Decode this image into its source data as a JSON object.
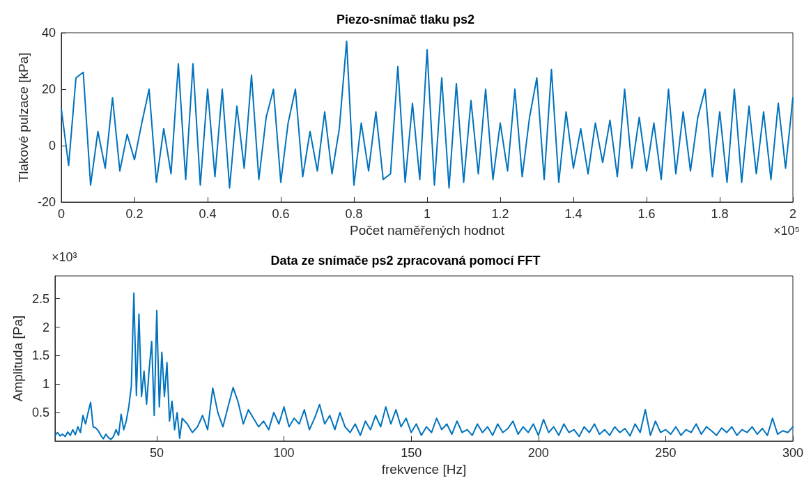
{
  "chart_data": [
    {
      "type": "line",
      "title": "Piezo-snímač tlaku ps2",
      "xlabel": "Počet naměřených hodnot",
      "ylabel": "Tlakové pulzace [kPa]",
      "annotations": [
        "×10⁵"
      ],
      "x": [
        0,
        0.02,
        0.04,
        0.06,
        0.08,
        0.1,
        0.12,
        0.14,
        0.16,
        0.18,
        0.2,
        0.22,
        0.24,
        0.26,
        0.28,
        0.3,
        0.32,
        0.34,
        0.36,
        0.38,
        0.4,
        0.42,
        0.44,
        0.46,
        0.48,
        0.5,
        0.52,
        0.54,
        0.56,
        0.58,
        0.6,
        0.62,
        0.64,
        0.66,
        0.68,
        0.7,
        0.72,
        0.74,
        0.76,
        0.78,
        0.8,
        0.82,
        0.84,
        0.86,
        0.88,
        0.9,
        0.92,
        0.94,
        0.96,
        0.98,
        1,
        1.02,
        1.04,
        1.06,
        1.08,
        1.1,
        1.12,
        1.14,
        1.16,
        1.18,
        1.2,
        1.22,
        1.24,
        1.26,
        1.28,
        1.3,
        1.32,
        1.34,
        1.36,
        1.38,
        1.4,
        1.42,
        1.44,
        1.46,
        1.48,
        1.5,
        1.52,
        1.54,
        1.56,
        1.58,
        1.6,
        1.62,
        1.64,
        1.66,
        1.68,
        1.7,
        1.72,
        1.74,
        1.76,
        1.78,
        1.8,
        1.82,
        1.84,
        1.86,
        1.88,
        1.9,
        1.92,
        1.94,
        1.96,
        1.98,
        2
      ],
      "series": [
        {
          "color": "#0072bd",
          "values": [
            13,
            -7,
            24,
            26,
            -14,
            5,
            -8,
            17,
            -9,
            4,
            -5,
            8,
            20,
            -13,
            6,
            -10,
            29,
            -12,
            29,
            -14,
            20,
            -11,
            20,
            -15,
            14,
            -8,
            25,
            -12,
            10,
            20,
            -13,
            8,
            20,
            -11,
            5,
            -9,
            12,
            -10,
            6,
            37,
            -14,
            8,
            -9,
            12,
            -12,
            -10,
            28,
            -13,
            15,
            -12,
            34,
            -14,
            24,
            -15,
            22,
            -13,
            16,
            -10,
            20,
            -12,
            8,
            -9,
            20,
            -11,
            10,
            24,
            -12,
            27,
            -13,
            12,
            -8,
            6,
            -10,
            8,
            -6,
            9,
            -11,
            20,
            -8,
            10,
            -9,
            8,
            -12,
            20,
            -10,
            12,
            -9,
            10,
            20,
            -11,
            12,
            -13,
            20,
            -13,
            14,
            -10,
            12,
            -12,
            15,
            -8,
            17
          ]
        }
      ],
      "xlim": [
        0,
        2
      ],
      "xticks": [
        0,
        0.2,
        0.4,
        0.6,
        0.8,
        1,
        1.2,
        1.4,
        1.6,
        1.8,
        2
      ],
      "ylim": [
        -20,
        40
      ],
      "yticks": [
        -20,
        0,
        20,
        40
      ],
      "marker": "none",
      "line_style": "solid"
    },
    {
      "type": "line",
      "title": "Data ze snímače ps2 zpracovaná pomocí FFT",
      "xlabel": "frekvence [Hz]",
      "ylabel": "Amplituda [Pa]",
      "annotations": [
        "×10³"
      ],
      "x": [
        10,
        11,
        12,
        13,
        14,
        15,
        16,
        17,
        18,
        19,
        20,
        21,
        22,
        23,
        24,
        25,
        26,
        27,
        28,
        29,
        30,
        31,
        32,
        33,
        34,
        35,
        36,
        37,
        38,
        39,
        40,
        41,
        42,
        43,
        44,
        45,
        46,
        47,
        48,
        49,
        50,
        51,
        52,
        53,
        54,
        55,
        56,
        57,
        58,
        59,
        60,
        62,
        64,
        66,
        68,
        70,
        72,
        74,
        76,
        78,
        80,
        82,
        84,
        86,
        88,
        90,
        92,
        94,
        96,
        98,
        100,
        102,
        104,
        106,
        108,
        110,
        112,
        114,
        116,
        118,
        120,
        122,
        124,
        126,
        128,
        130,
        132,
        134,
        136,
        138,
        140,
        142,
        144,
        146,
        148,
        150,
        152,
        154,
        156,
        158,
        160,
        162,
        164,
        166,
        168,
        170,
        172,
        174,
        176,
        178,
        180,
        182,
        184,
        186,
        188,
        190,
        192,
        194,
        196,
        198,
        200,
        202,
        204,
        206,
        208,
        210,
        212,
        214,
        216,
        218,
        220,
        222,
        224,
        226,
        228,
        230,
        232,
        234,
        236,
        238,
        240,
        242,
        244,
        246,
        248,
        250,
        252,
        254,
        256,
        258,
        260,
        262,
        264,
        266,
        268,
        270,
        272,
        274,
        276,
        278,
        280,
        282,
        284,
        286,
        288,
        290,
        292,
        294,
        296,
        298,
        300
      ],
      "series": [
        {
          "color": "#0072bd",
          "values": [
            0.1,
            0.15,
            0.09,
            0.12,
            0.08,
            0.16,
            0.1,
            0.2,
            0.11,
            0.25,
            0.15,
            0.45,
            0.3,
            0.5,
            0.68,
            0.25,
            0.23,
            0.18,
            0.1,
            0.04,
            0.12,
            0.06,
            0.03,
            0.08,
            0.2,
            0.1,
            0.47,
            0.2,
            0.35,
            0.6,
            0.96,
            2.6,
            0.8,
            2.23,
            0.78,
            1.23,
            0.65,
            1.25,
            1.75,
            0.45,
            2.29,
            0.6,
            1.56,
            0.78,
            1.38,
            0.35,
            0.7,
            0.2,
            0.5,
            0.05,
            0.4,
            0.3,
            0.15,
            0.25,
            0.45,
            0.2,
            0.93,
            0.5,
            0.25,
            0.6,
            0.94,
            0.68,
            0.3,
            0.55,
            0.4,
            0.25,
            0.35,
            0.2,
            0.5,
            0.3,
            0.6,
            0.25,
            0.4,
            0.3,
            0.55,
            0.2,
            0.4,
            0.64,
            0.3,
            0.45,
            0.2,
            0.5,
            0.25,
            0.15,
            0.3,
            0.1,
            0.35,
            0.2,
            0.45,
            0.25,
            0.6,
            0.3,
            0.55,
            0.25,
            0.4,
            0.15,
            0.3,
            0.1,
            0.25,
            0.15,
            0.4,
            0.2,
            0.3,
            0.12,
            0.35,
            0.15,
            0.2,
            0.1,
            0.3,
            0.15,
            0.25,
            0.1,
            0.3,
            0.15,
            0.22,
            0.35,
            0.12,
            0.25,
            0.15,
            0.3,
            0.1,
            0.38,
            0.15,
            0.25,
            0.1,
            0.3,
            0.15,
            0.2,
            0.08,
            0.25,
            0.15,
            0.3,
            0.12,
            0.2,
            0.1,
            0.25,
            0.15,
            0.22,
            0.09,
            0.3,
            0.15,
            0.55,
            0.1,
            0.35,
            0.15,
            0.2,
            0.12,
            0.25,
            0.1,
            0.2,
            0.15,
            0.3,
            0.12,
            0.25,
            0.18,
            0.1,
            0.23,
            0.15,
            0.25,
            0.1,
            0.2,
            0.15,
            0.25,
            0.12,
            0.22,
            0.1,
            0.4,
            0.12,
            0.18,
            0.15,
            0.25
          ]
        }
      ],
      "xlim": [
        10,
        300
      ],
      "xticks": [
        50,
        100,
        150,
        200,
        250,
        300
      ],
      "ylim": [
        0,
        2.9
      ],
      "yticks": [
        0.5,
        1,
        1.5,
        2,
        2.5
      ],
      "marker": "none",
      "line_style": "solid"
    }
  ]
}
